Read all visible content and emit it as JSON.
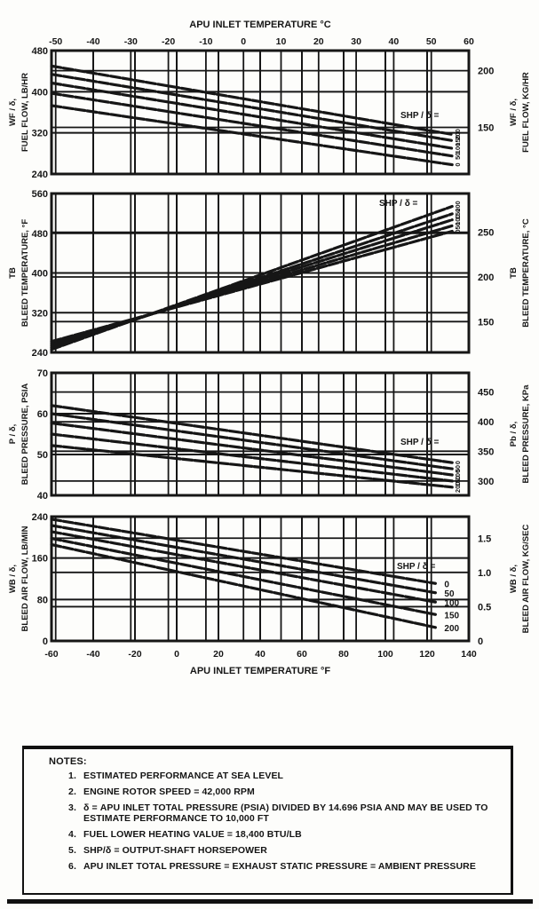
{
  "page": {
    "background": "#fdfdfb",
    "ink": "#161616"
  },
  "x_axis": {
    "xlabel_top": "APU INLET TEMPERATURE °C",
    "xlabel_bottom": "APU INLET TEMPERATURE °F",
    "x_range_f": [
      -60,
      140
    ],
    "f_ticks": [
      -60,
      -40,
      -20,
      0,
      20,
      40,
      60,
      80,
      100,
      120,
      140
    ],
    "c_ticks": [
      {
        "label": "-50",
        "f": -58
      },
      {
        "label": "-40",
        "f": -40
      },
      {
        "label": "-30",
        "f": -22
      },
      {
        "label": "-20",
        "f": -4
      },
      {
        "label": "-10",
        "f": 14
      },
      {
        "label": "0",
        "f": 32
      },
      {
        "label": "10",
        "f": 50
      },
      {
        "label": "20",
        "f": 68
      },
      {
        "label": "30",
        "f": 86
      },
      {
        "label": "40",
        "f": 104
      },
      {
        "label": "50",
        "f": 122
      },
      {
        "label": "60",
        "f": 140
      }
    ]
  },
  "chart_data": [
    {
      "type": "line",
      "name": "fuel-flow",
      "left_title": [
        "WF / δ,",
        "FUEL FLOW, LB/HR"
      ],
      "right_title": [
        "WF / δ,",
        "FUEL FLOW, KG/HR"
      ],
      "value_range": [
        240,
        480
      ],
      "left_ticks": [
        {
          "label": "480",
          "v": 480
        },
        {
          "label": "400",
          "v": 400
        },
        {
          "label": "320",
          "v": 320
        },
        {
          "label": "240",
          "v": 240
        }
      ],
      "right_ticks": [
        {
          "label": "200",
          "v": 441.0
        },
        {
          "label": "150",
          "v": 330.7
        }
      ],
      "legend": "SHP / δ =",
      "series": [
        {
          "name": "200",
          "points": [
            [
              -60,
              450
            ],
            [
              132,
              317
            ]
          ]
        },
        {
          "name": "150",
          "points": [
            [
              -60,
              434
            ],
            [
              132,
              305
            ]
          ]
        },
        {
          "name": "100",
          "points": [
            [
              -60,
              417
            ],
            [
              132,
              290
            ]
          ]
        },
        {
          "name": "50",
          "points": [
            [
              -60,
              397
            ],
            [
              132,
              275
            ]
          ]
        },
        {
          "name": "0",
          "points": [
            [
              -60,
              373
            ],
            [
              132,
              258
            ]
          ]
        }
      ]
    },
    {
      "type": "line",
      "name": "bleed-temperature",
      "left_title": [
        "TB",
        "BLEED TEMPERATURE, °F"
      ],
      "right_title": [
        "TB",
        "BLEED TEMPERATURE, °C"
      ],
      "value_range": [
        240,
        560
      ],
      "left_ticks": [
        {
          "label": "560",
          "v": 560
        },
        {
          "label": "480",
          "v": 480
        },
        {
          "label": "400",
          "v": 400
        },
        {
          "label": "320",
          "v": 320
        },
        {
          "label": "240",
          "v": 240
        }
      ],
      "right_ticks": [
        {
          "label": "250",
          "v": 482
        },
        {
          "label": "200",
          "v": 392
        },
        {
          "label": "150",
          "v": 302
        }
      ],
      "legend": "SHP / δ =",
      "series": [
        {
          "name": "200",
          "points": [
            [
              -60,
              246
            ],
            [
              132,
              534
            ]
          ]
        },
        {
          "name": "150",
          "points": [
            [
              -60,
              250
            ],
            [
              132,
              519
            ]
          ]
        },
        {
          "name": "100",
          "points": [
            [
              -60,
              254
            ],
            [
              132,
              507
            ]
          ]
        },
        {
          "name": "50",
          "points": [
            [
              -60,
              258
            ],
            [
              132,
              495
            ]
          ]
        },
        {
          "name": "0",
          "points": [
            [
              -60,
              262
            ],
            [
              132,
              484
            ]
          ]
        }
      ]
    },
    {
      "type": "line",
      "name": "bleed-pressure",
      "left_title": [
        "P / δ,",
        "BLEED PRESSURE, PSIA"
      ],
      "right_title": [
        "Pb / δ,",
        "BLEED PRESSURE, KPa"
      ],
      "value_range": [
        40,
        70
      ],
      "left_ticks": [
        {
          "label": "70",
          "v": 70
        },
        {
          "label": "60",
          "v": 60
        },
        {
          "label": "50",
          "v": 50
        },
        {
          "label": "40",
          "v": 40
        }
      ],
      "right_ticks": [
        {
          "label": "450",
          "v": 65.3
        },
        {
          "label": "400",
          "v": 58.0
        },
        {
          "label": "350",
          "v": 50.8
        },
        {
          "label": "300",
          "v": 43.5
        }
      ],
      "legend": "SHP / δ =",
      "series": [
        {
          "name": "0",
          "points": [
            [
              -60,
              62.0
            ],
            [
              132,
              48.0
            ]
          ]
        },
        {
          "name": "50",
          "points": [
            [
              -60,
              60.0
            ],
            [
              132,
              46.5
            ]
          ]
        },
        {
          "name": "100",
          "points": [
            [
              -60,
              57.7
            ],
            [
              132,
              45.0
            ]
          ]
        },
        {
          "name": "150",
          "points": [
            [
              -60,
              55.0
            ],
            [
              132,
              43.5
            ]
          ]
        },
        {
          "name": "200",
          "points": [
            [
              -60,
              52.2
            ],
            [
              132,
              42.0
            ]
          ]
        }
      ]
    },
    {
      "type": "line",
      "name": "bleed-air-flow",
      "left_title": [
        "WB / δ,",
        "BLEED AIR FLOW, LB/MIN"
      ],
      "right_title": [
        "WB / δ,",
        "BLEED AIR FLOW, KG/SEC"
      ],
      "value_range": [
        0,
        240
      ],
      "left_ticks": [
        {
          "label": "240",
          "v": 240
        },
        {
          "label": "160",
          "v": 160
        },
        {
          "label": "80",
          "v": 80
        },
        {
          "label": "0",
          "v": 0
        }
      ],
      "right_ticks": [
        {
          "label": "1.5",
          "v": 198.4
        },
        {
          "label": "1.0",
          "v": 132.3
        },
        {
          "label": "0.5",
          "v": 66.1
        },
        {
          "label": "0",
          "v": 0
        }
      ],
      "legend": "SHP / δ =",
      "series": [
        {
          "name": "0",
          "points": [
            [
              -60,
              235
            ],
            [
              124,
              111
            ]
          ]
        },
        {
          "name": "50",
          "points": [
            [
              -60,
              223
            ],
            [
              124,
              93
            ]
          ]
        },
        {
          "name": "100",
          "points": [
            [
              -60,
              211
            ],
            [
              124,
              75
            ]
          ]
        },
        {
          "name": "150",
          "points": [
            [
              -60,
              198
            ],
            [
              124,
              51
            ]
          ]
        },
        {
          "name": "200",
          "points": [
            [
              -60,
              186
            ],
            [
              124,
              26
            ]
          ]
        }
      ]
    }
  ],
  "notes": {
    "title": "NOTES:",
    "items": [
      {
        "num": "1.",
        "text": "ESTIMATED PERFORMANCE AT SEA LEVEL"
      },
      {
        "num": "2.",
        "text": "ENGINE ROTOR SPEED = 42,000 RPM"
      },
      {
        "num": "3.",
        "text": "δ = APU INLET TOTAL PRESSURE (PSIA) DIVIDED BY 14.696 PSIA AND MAY BE USED TO ESTIMATE PERFORMANCE TO 10,000 FT"
      },
      {
        "num": "4.",
        "text": "FUEL LOWER HEATING VALUE = 18,400 BTU/LB"
      },
      {
        "num": "5.",
        "text": "SHP/δ = OUTPUT-SHAFT HORSEPOWER"
      },
      {
        "num": "6.",
        "text": "APU INLET TOTAL PRESSURE = EXHAUST STATIC PRESSURE = AMBIENT PRESSURE"
      }
    ]
  }
}
